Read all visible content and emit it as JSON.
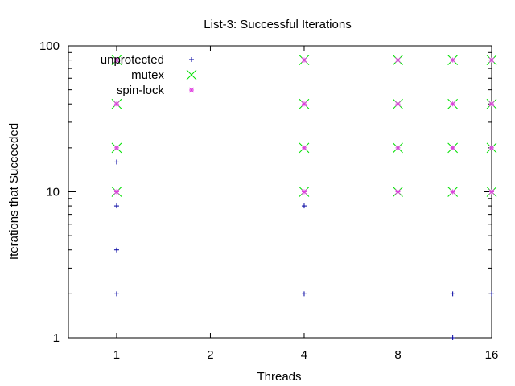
{
  "chart_data": {
    "type": "scatter",
    "title": "List-3: Successful Iterations",
    "xlabel": "Threads",
    "ylabel": "Iterations that Succeeded",
    "x_scale": "log2",
    "y_scale": "log10",
    "xlim": [
      0.7,
      16
    ],
    "ylim": [
      1,
      100
    ],
    "x_ticks": [
      1,
      2,
      4,
      8,
      16
    ],
    "x_tick_labels": [
      "1",
      "2",
      "4",
      "8",
      "16"
    ],
    "y_ticks": [
      1,
      10,
      100
    ],
    "y_tick_labels": [
      "1",
      "10",
      "100"
    ],
    "grid": false,
    "legend_position": "top-left",
    "series": [
      {
        "name": "unprotected",
        "color": "#0000a0",
        "marker": "plus",
        "points": [
          [
            1,
            2
          ],
          [
            1,
            4
          ],
          [
            1,
            8
          ],
          [
            1,
            16
          ],
          [
            4,
            2
          ],
          [
            4,
            8
          ],
          [
            12,
            2
          ],
          [
            12,
            1
          ],
          [
            16,
            2
          ]
        ]
      },
      {
        "name": "mutex",
        "color": "#00e000",
        "marker": "cross",
        "points": [
          [
            1,
            10
          ],
          [
            1,
            20
          ],
          [
            1,
            40
          ],
          [
            1,
            80
          ],
          [
            4,
            10
          ],
          [
            4,
            20
          ],
          [
            4,
            40
          ],
          [
            4,
            80
          ],
          [
            8,
            10
          ],
          [
            8,
            20
          ],
          [
            8,
            40
          ],
          [
            8,
            80
          ],
          [
            12,
            10
          ],
          [
            12,
            20
          ],
          [
            12,
            40
          ],
          [
            12,
            80
          ],
          [
            16,
            10
          ],
          [
            16,
            20
          ],
          [
            16,
            40
          ],
          [
            16,
            80
          ]
        ]
      },
      {
        "name": "spin-lock",
        "color": "#e040e0",
        "marker": "star",
        "points": [
          [
            1,
            10
          ],
          [
            1,
            20
          ],
          [
            1,
            40
          ],
          [
            1,
            80
          ],
          [
            4,
            10
          ],
          [
            4,
            20
          ],
          [
            4,
            40
          ],
          [
            4,
            80
          ],
          [
            8,
            10
          ],
          [
            8,
            20
          ],
          [
            8,
            40
          ],
          [
            8,
            80
          ],
          [
            12,
            10
          ],
          [
            12,
            20
          ],
          [
            12,
            40
          ],
          [
            12,
            80
          ],
          [
            16,
            10
          ],
          [
            16,
            20
          ],
          [
            16,
            40
          ],
          [
            16,
            80
          ]
        ]
      }
    ]
  }
}
